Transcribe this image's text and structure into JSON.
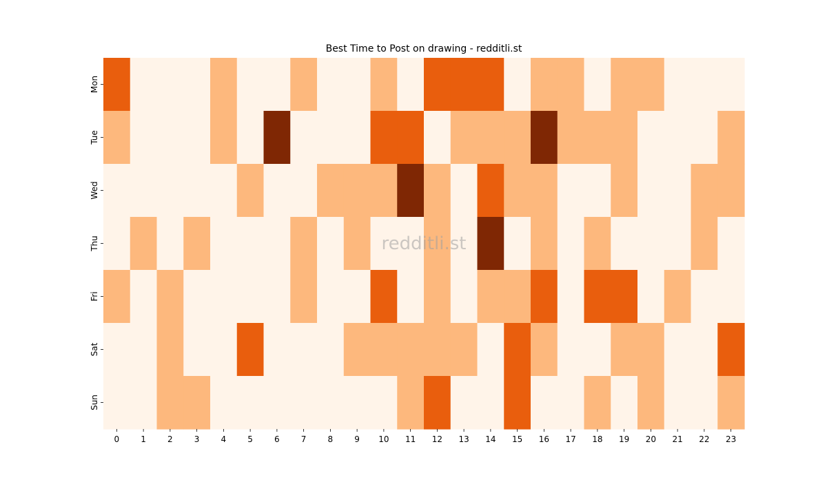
{
  "chart_data": {
    "type": "heatmap",
    "title": "Best Time to Post on drawing - redditli.st",
    "watermark": "redditli.st",
    "x": [
      "0",
      "1",
      "2",
      "3",
      "4",
      "5",
      "6",
      "7",
      "8",
      "9",
      "10",
      "11",
      "12",
      "13",
      "14",
      "15",
      "16",
      "17",
      "18",
      "19",
      "20",
      "21",
      "22",
      "23"
    ],
    "y": [
      "Mon",
      "Tue",
      "Wed",
      "Thu",
      "Fri",
      "Sat",
      "Sun"
    ],
    "levels": [
      "#fff4e9",
      "#fdb87d",
      "#e95e0d",
      "#7f2704"
    ],
    "values": [
      [
        2,
        0,
        0,
        0,
        1,
        0,
        0,
        1,
        0,
        0,
        1,
        0,
        2,
        2,
        2,
        0,
        1,
        1,
        0,
        1,
        1,
        0,
        0,
        0
      ],
      [
        1,
        0,
        0,
        0,
        1,
        0,
        3,
        0,
        0,
        0,
        2,
        2,
        0,
        1,
        1,
        1,
        3,
        1,
        1,
        1,
        0,
        0,
        0,
        1
      ],
      [
        0,
        0,
        0,
        0,
        0,
        1,
        0,
        0,
        1,
        1,
        1,
        3,
        1,
        0,
        2,
        1,
        1,
        0,
        0,
        1,
        0,
        0,
        1,
        1
      ],
      [
        0,
        1,
        0,
        1,
        0,
        0,
        0,
        1,
        0,
        1,
        0,
        0,
        1,
        0,
        3,
        0,
        1,
        0,
        1,
        0,
        0,
        0,
        1,
        0
      ],
      [
        1,
        0,
        1,
        0,
        0,
        0,
        0,
        1,
        0,
        0,
        2,
        0,
        1,
        0,
        1,
        1,
        2,
        0,
        2,
        2,
        0,
        1,
        0,
        0
      ],
      [
        0,
        0,
        1,
        0,
        0,
        2,
        0,
        0,
        0,
        1,
        1,
        1,
        1,
        1,
        0,
        2,
        1,
        0,
        0,
        1,
        1,
        0,
        0,
        2
      ],
      [
        0,
        0,
        1,
        1,
        0,
        0,
        0,
        0,
        0,
        0,
        0,
        1,
        2,
        0,
        0,
        2,
        0,
        0,
        1,
        0,
        1,
        0,
        0,
        1
      ]
    ]
  }
}
